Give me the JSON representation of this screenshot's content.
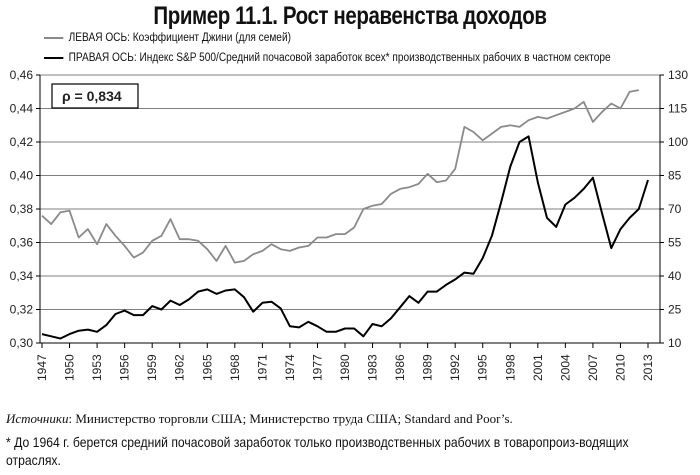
{
  "chart_data": {
    "type": "line",
    "title": "Пример 11.1. Рост неравенства доходов",
    "annotation": "ρ = 0,834",
    "x": [
      1947,
      1948,
      1949,
      1950,
      1951,
      1952,
      1953,
      1954,
      1955,
      1956,
      1957,
      1958,
      1959,
      1960,
      1961,
      1962,
      1963,
      1964,
      1965,
      1966,
      1967,
      1968,
      1969,
      1970,
      1971,
      1972,
      1973,
      1974,
      1975,
      1976,
      1977,
      1978,
      1979,
      1980,
      1981,
      1982,
      1983,
      1984,
      1985,
      1986,
      1987,
      1988,
      1989,
      1990,
      1991,
      1992,
      1993,
      1994,
      1995,
      1996,
      1997,
      1998,
      1999,
      2000,
      2001,
      2002,
      2003,
      2004,
      2005,
      2006,
      2007,
      2008,
      2009,
      2010,
      2011,
      2012,
      2013
    ],
    "x_tick_labels": [
      "1947",
      "1950",
      "1953",
      "1956",
      "1959",
      "1962",
      "1965",
      "1968",
      "1971",
      "1974",
      "1977",
      "1980",
      "1983",
      "1986",
      "1989",
      "1992",
      "1995",
      "1998",
      "2001",
      "2004",
      "2007",
      "2010",
      "2013"
    ],
    "left_axis": {
      "ylim": [
        0.3,
        0.46
      ],
      "tick_labels": [
        "0,30",
        "0,32",
        "0,34",
        "0,36",
        "0,38",
        "0,40",
        "0,42",
        "0,44",
        "0,46"
      ]
    },
    "right_axis": {
      "ylim": [
        10,
        130
      ],
      "tick_labels": [
        "10",
        "25",
        "40",
        "55",
        "70",
        "85",
        "100",
        "115",
        "130"
      ]
    },
    "grid": true,
    "legend_placement": "top",
    "series": [
      {
        "name": "ЛЕВАЯ ОСЬ: Коэффициент Джини (для семей)",
        "axis": "left",
        "color": "#8a8a8a",
        "values": [
          0.376,
          0.371,
          0.378,
          0.379,
          0.363,
          0.368,
          0.359,
          0.371,
          0.364,
          0.358,
          0.351,
          0.354,
          0.361,
          0.364,
          0.374,
          0.362,
          0.362,
          0.361,
          0.356,
          0.349,
          0.358,
          0.348,
          0.349,
          0.353,
          0.355,
          0.359,
          0.356,
          0.355,
          0.357,
          0.358,
          0.363,
          0.363,
          0.365,
          0.365,
          0.369,
          0.38,
          0.382,
          0.383,
          0.389,
          0.392,
          0.393,
          0.395,
          0.401,
          0.396,
          0.397,
          0.404,
          0.429,
          0.426,
          0.421,
          0.425,
          0.429,
          0.43,
          0.429,
          0.433,
          0.435,
          0.434,
          0.436,
          0.438,
          0.44,
          0.444,
          0.432,
          0.438,
          0.443,
          0.44,
          0.45,
          0.451,
          null
        ]
      },
      {
        "name": "ПРАВАЯ ОСЬ: Индекс S&P 500/Средний почасовой заработок всех* производственных рабочих в частном секторе",
        "axis": "right",
        "color": "#000000",
        "values": [
          14,
          13,
          12,
          14,
          15.5,
          16,
          15,
          18,
          23,
          24.5,
          22.5,
          22.5,
          26.5,
          25,
          29,
          27,
          29.5,
          33,
          34,
          32,
          33.5,
          34,
          30.5,
          24,
          28,
          28.5,
          25.5,
          17.5,
          17,
          19.5,
          17.5,
          15,
          15,
          16.5,
          16.5,
          13,
          18.5,
          17.5,
          21,
          26,
          31,
          28,
          33,
          33,
          36,
          38.5,
          41.5,
          41,
          48,
          58,
          73,
          89,
          100,
          102.5,
          82,
          66,
          62,
          72,
          75,
          79,
          84,
          68,
          52.5,
          61,
          66,
          70,
          83
        ]
      }
    ]
  },
  "source": {
    "label": "Источники",
    "text": ": Министерство торговли США; Министерство труда США; Standard and Poor’s."
  },
  "footnote": "* До 1964 г. берется средний почасовой заработок только производственных рабочих в товаропроиз-водящих отраслях."
}
